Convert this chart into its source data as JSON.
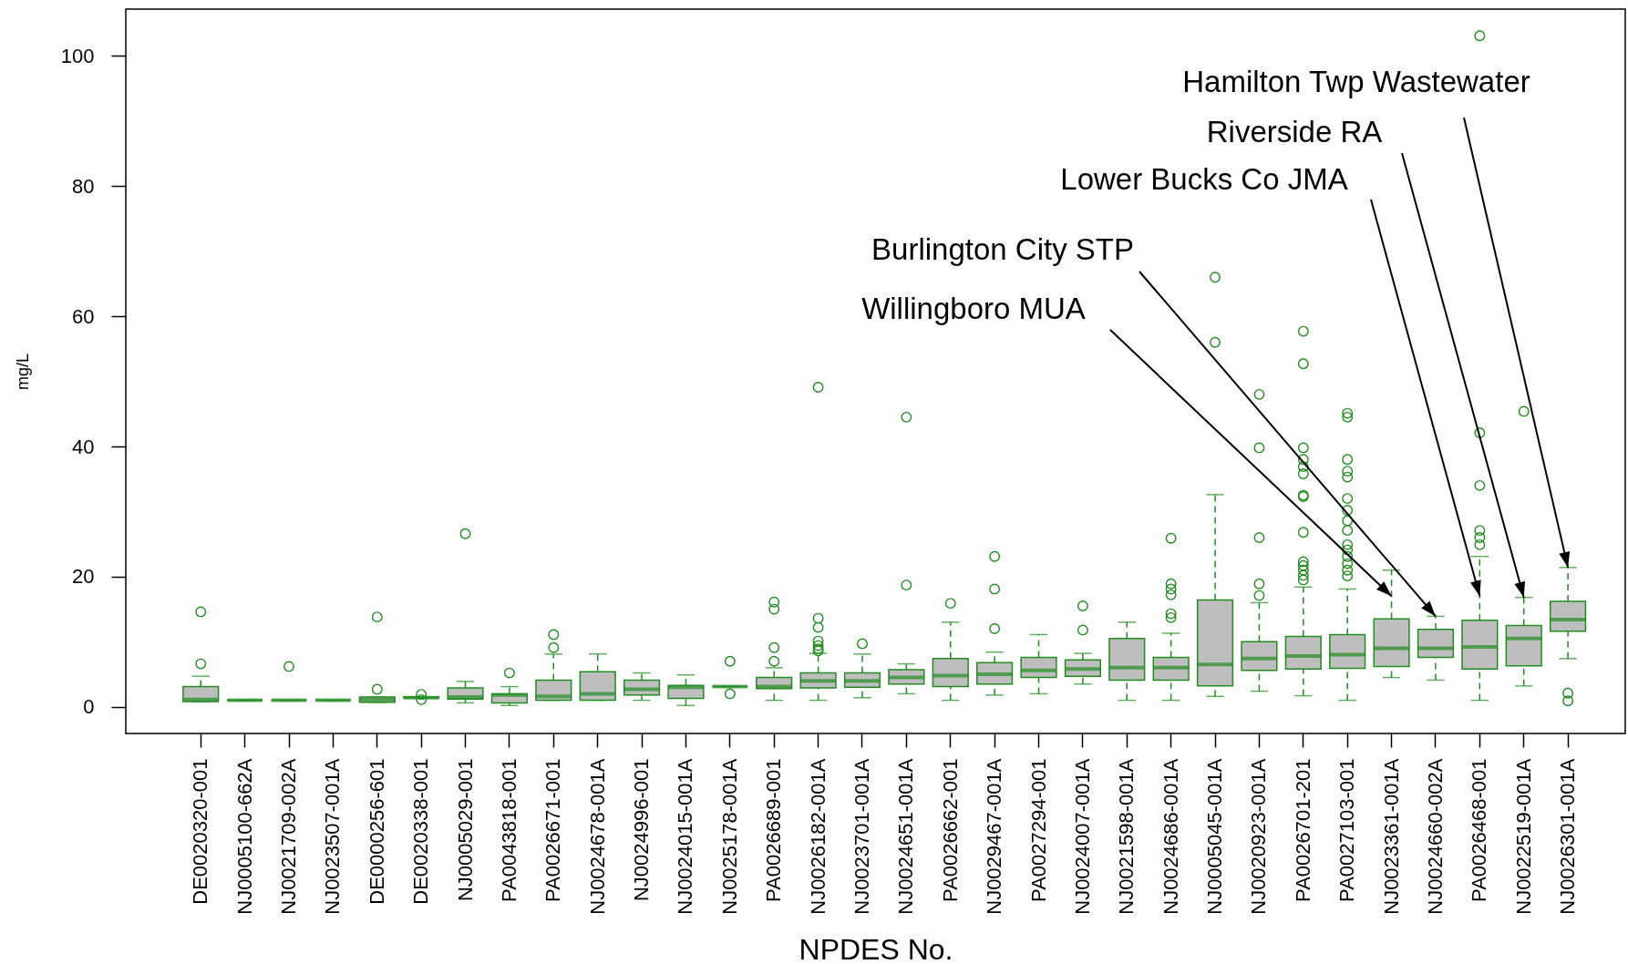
{
  "chart_data": {
    "type": "box",
    "xlabel": "NPDES No.",
    "ylabel": "mg/L",
    "color": "#228b22",
    "marker": "circle",
    "line_style": "dashed",
    "categories": [
      "DE0020320-001",
      "NJ0005100-662A",
      "NJ0021709-002A",
      "NJ0023507-001A",
      "DE0000256-601",
      "DE0020338-001",
      "NJ0005029-001",
      "PA0043818-001",
      "PA0026671-001",
      "NJ0024678-001A",
      "NJ0024996-001",
      "NJ0024015-001A",
      "NJ0025178-001A",
      "PA0026689-001",
      "NJ0026182-001A",
      "NJ0023701-001A",
      "NJ0024651-001A",
      "PA0026662-001",
      "NJ0029467-001A",
      "PA0027294-001",
      "NJ0024007-001A",
      "NJ0021598-001A",
      "NJ0024686-001A",
      "NJ0005045-001A",
      "NJ0020923-001A",
      "PA0026701-201",
      "PA0027103-001",
      "NJ0023361-001A",
      "NJ0024660-002A",
      "PA0026468-001",
      "NJ0022519-001A",
      "NJ0026301-001A"
    ],
    "boxes": [
      {
        "low": 0.8,
        "q1": 0.8,
        "median": 1.1,
        "q3": 3.1,
        "high": 4.7,
        "outliers": [
          14.6,
          6.6
        ]
      },
      {
        "low": 1.0,
        "q1": 1.0,
        "median": 1.0,
        "q3": 1.0,
        "high": 1.0
      },
      {
        "low": 1.0,
        "q1": 1.0,
        "median": 1.0,
        "q3": 1.0,
        "high": 1.0,
        "outliers": [
          6.2
        ]
      },
      {
        "low": 1.0,
        "q1": 1.0,
        "median": 1.0,
        "q3": 1.0,
        "high": 1.0
      },
      {
        "low": 0.7,
        "q1": 0.7,
        "median": 1.1,
        "q3": 1.5,
        "high": 1.5,
        "outliers": [
          2.7,
          13.8
        ]
      },
      {
        "low": 1.4,
        "q1": 1.4,
        "median": 1.4,
        "q3": 1.5,
        "high": 1.5,
        "outliers": [
          1.9,
          1.1
        ]
      },
      {
        "low": 0.6,
        "q1": 1.2,
        "median": 1.5,
        "q3": 2.9,
        "high": 3.9,
        "outliers": [
          26.6
        ]
      },
      {
        "low": 0.2,
        "q1": 0.6,
        "median": 1.8,
        "q3": 2.0,
        "high": 3.1,
        "outliers": [
          5.2
        ]
      },
      {
        "low": 1.0,
        "q1": 1.0,
        "median": 1.6,
        "q3": 4.1,
        "high": 8.1,
        "outliers": [
          9.1,
          11.1
        ]
      },
      {
        "low": 1.0,
        "q1": 1.0,
        "median": 2.0,
        "q3": 5.4,
        "high": 8.1
      },
      {
        "low": 1.0,
        "q1": 1.8,
        "median": 2.7,
        "q3": 4.1,
        "high": 5.2
      },
      {
        "low": 0.2,
        "q1": 1.3,
        "median": 3.0,
        "q3": 3.3,
        "high": 4.9
      },
      {
        "low": 3.1,
        "q1": 3.1,
        "median": 3.1,
        "q3": 3.1,
        "high": 3.1,
        "outliers": [
          7.0,
          2.0
        ]
      },
      {
        "low": 1.0,
        "q1": 2.8,
        "median": 3.1,
        "q3": 4.5,
        "high": 6.0,
        "outliers": [
          7.0,
          9.1,
          15.0,
          16.1
        ]
      },
      {
        "low": 1.0,
        "q1": 2.9,
        "median": 4.0,
        "q3": 5.2,
        "high": 8.2,
        "outliers": [
          49.1,
          13.6,
          12.2,
          10.1,
          9.4,
          8.9,
          8.6
        ]
      },
      {
        "low": 1.4,
        "q1": 3.0,
        "median": 4.0,
        "q3": 5.2,
        "high": 8.1,
        "outliers": [
          9.7
        ]
      },
      {
        "low": 2.0,
        "q1": 3.5,
        "median": 4.5,
        "q3": 5.7,
        "high": 6.6,
        "outliers": [
          44.5,
          18.7
        ]
      },
      {
        "low": 1.0,
        "q1": 3.1,
        "median": 4.8,
        "q3": 7.4,
        "high": 13.0,
        "outliers": [
          15.9
        ]
      },
      {
        "low": 1.8,
        "q1": 3.5,
        "median": 5.0,
        "q3": 6.8,
        "high": 8.4,
        "outliers": [
          23.1,
          18.1,
          12.0
        ]
      },
      {
        "low": 2.0,
        "q1": 4.5,
        "median": 5.6,
        "q3": 7.6,
        "high": 11.1
      },
      {
        "low": 3.5,
        "q1": 4.7,
        "median": 5.8,
        "q3": 7.2,
        "high": 8.2,
        "outliers": [
          15.5,
          11.8
        ]
      },
      {
        "low": 1.0,
        "q1": 4.1,
        "median": 6.0,
        "q3": 10.5,
        "high": 13.0
      },
      {
        "low": 1.0,
        "q1": 4.1,
        "median": 6.0,
        "q3": 7.6,
        "high": 11.3,
        "outliers": [
          25.9,
          18.9,
          18.1,
          17.2,
          14.3,
          13.7
        ]
      },
      {
        "low": 1.6,
        "q1": 3.2,
        "median": 6.5,
        "q3": 16.4,
        "high": 32.6,
        "outliers": [
          66.0,
          56.0
        ]
      },
      {
        "low": 2.4,
        "q1": 5.6,
        "median": 7.4,
        "q3": 10.0,
        "high": 16.0,
        "outliers": [
          48.0,
          39.8,
          26.0,
          18.9,
          17.1
        ]
      },
      {
        "low": 1.7,
        "q1": 5.8,
        "median": 7.8,
        "q3": 10.8,
        "high": 18.4,
        "outliers": [
          57.7,
          52.7,
          39.8,
          38.0,
          36.9,
          35.8,
          32.5,
          32.3,
          26.8,
          22.3,
          21.7,
          21.0,
          20.2,
          19.5
        ]
      },
      {
        "low": 1.0,
        "q1": 5.9,
        "median": 8.0,
        "q3": 11.1,
        "high": 18.1,
        "outliers": [
          45.1,
          44.5,
          38.0,
          36.2,
          35.3,
          32.0,
          30.2,
          28.6,
          27.1,
          24.9,
          24.1,
          23.1,
          22.0,
          21.0,
          20.1
        ]
      },
      {
        "low": 4.5,
        "q1": 6.2,
        "median": 9.0,
        "q3": 13.5,
        "high": 21.0
      },
      {
        "low": 4.1,
        "q1": 7.6,
        "median": 9.0,
        "q3": 11.9,
        "high": 13.9
      },
      {
        "low": 1.0,
        "q1": 5.8,
        "median": 9.2,
        "q3": 13.3,
        "high": 23.1,
        "outliers": [
          103.1,
          42.1,
          34.0,
          27.1,
          26.0,
          24.9
        ]
      },
      {
        "low": 3.2,
        "q1": 6.3,
        "median": 10.5,
        "q3": 12.5,
        "high": 16.8,
        "outliers": [
          45.4
        ]
      },
      {
        "low": 7.4,
        "q1": 11.6,
        "median": 13.4,
        "q3": 16.2,
        "high": 21.4,
        "outliers": [
          2.1,
          0.9
        ]
      }
    ],
    "ylim": [
      -4.1,
      107.2
    ],
    "yticks": [
      0,
      20,
      40,
      60,
      80,
      100
    ],
    "annotations": [
      {
        "text": "Willingboro MUA",
        "x": "NJ0023361-001A",
        "y": 17.0
      },
      {
        "text": "Burlington City STP",
        "x": "NJ0024660-002A",
        "y": 13.9
      },
      {
        "text": "Lower Bucks Co JMA",
        "x": "PA0026468-001",
        "y": 17.0
      },
      {
        "text": "Riverside RA",
        "x": "NJ0022519-001A",
        "y": 16.8
      },
      {
        "text": "Hamilton Twp Wastewater",
        "x": "NJ0026301-001A",
        "y": 21.4
      }
    ]
  }
}
